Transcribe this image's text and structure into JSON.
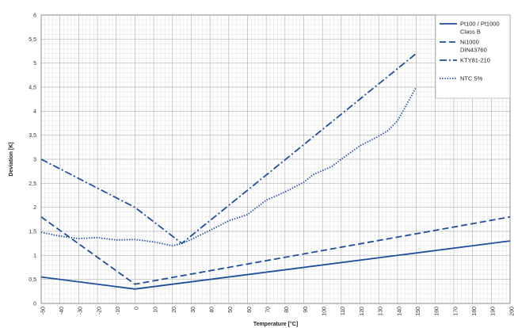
{
  "chart_data": {
    "type": "line",
    "xlabel": "Temperature [°C]",
    "ylabel": "Deviation [K]",
    "xlim": [
      -50,
      200
    ],
    "ylim": [
      0,
      6
    ],
    "x_ticks": [
      -50,
      -40,
      -30,
      -20,
      -10,
      0,
      10,
      20,
      30,
      40,
      50,
      60,
      70,
      80,
      90,
      100,
      110,
      120,
      130,
      140,
      150,
      160,
      170,
      180,
      190,
      200
    ],
    "y_ticks": [
      0,
      0.5,
      1,
      1.5,
      2,
      2.5,
      3,
      3.5,
      4,
      4.5,
      5,
      5.5,
      6
    ],
    "y_tick_labels": [
      "0",
      "0,5",
      "1",
      "1,5",
      "2",
      "2,5",
      "3",
      "3,5",
      "4",
      "4,5",
      "5",
      "5,5",
      "6"
    ],
    "grid": true,
    "minor_grid": true,
    "legend_position": "top-right",
    "series": [
      {
        "legend_lines": [
          "Pt100 / Pt1000",
          "Class B"
        ],
        "line_style": "solid",
        "color": "#1f4e9e",
        "points": [
          [
            -50,
            0.55
          ],
          [
            0,
            0.3
          ],
          [
            200,
            1.3
          ]
        ]
      },
      {
        "legend_lines": [
          "Ni1000",
          "DIN43760"
        ],
        "line_style": "dashed",
        "color": "#1f4e9e",
        "points": [
          [
            -50,
            1.8
          ],
          [
            0,
            0.4
          ],
          [
            200,
            1.8
          ]
        ]
      },
      {
        "legend_lines": [
          "KTY81-210"
        ],
        "line_style": "dashdot",
        "color": "#1f4e9e",
        "points": [
          [
            -50,
            3.0
          ],
          [
            0,
            2.0
          ],
          [
            25,
            1.25
          ],
          [
            150,
            5.2
          ]
        ]
      },
      {
        "legend_lines": [
          "NTC 5%"
        ],
        "line_style": "dotted",
        "color": "#1f4e9e",
        "points": [
          [
            -50,
            1.48
          ],
          [
            -40,
            1.4
          ],
          [
            -30,
            1.35
          ],
          [
            -20,
            1.37
          ],
          [
            -10,
            1.32
          ],
          [
            0,
            1.33
          ],
          [
            10,
            1.28
          ],
          [
            20,
            1.2
          ],
          [
            25,
            1.25
          ],
          [
            30,
            1.33
          ],
          [
            40,
            1.52
          ],
          [
            50,
            1.72
          ],
          [
            60,
            1.85
          ],
          [
            70,
            2.15
          ],
          [
            80,
            2.32
          ],
          [
            90,
            2.52
          ],
          [
            95,
            2.68
          ],
          [
            105,
            2.85
          ],
          [
            110,
            3.0
          ],
          [
            120,
            3.28
          ],
          [
            130,
            3.48
          ],
          [
            135,
            3.6
          ],
          [
            140,
            3.8
          ],
          [
            145,
            4.15
          ],
          [
            150,
            4.5
          ]
        ]
      }
    ]
  }
}
